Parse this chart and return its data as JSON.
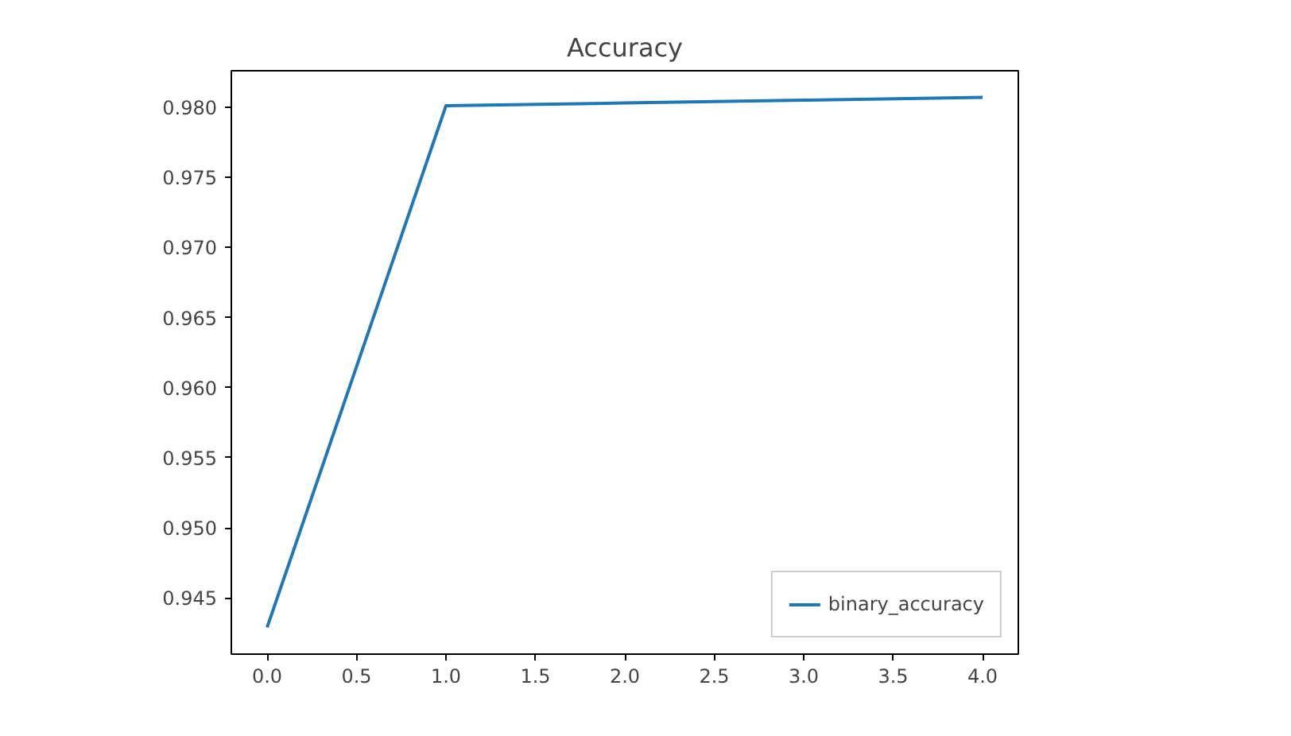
{
  "chart_data": {
    "type": "line",
    "title": "Accuracy",
    "x": [
      0,
      1,
      2,
      3,
      4
    ],
    "series": [
      {
        "name": "binary_accuracy",
        "color": "#1f77b4",
        "values": [
          0.9429,
          0.9801,
          0.9803,
          0.9805,
          0.9807
        ]
      }
    ],
    "xlim": [
      -0.2,
      4.2
    ],
    "ylim": [
      0.941,
      0.9826
    ],
    "xticks": [
      {
        "value": 0,
        "label": "0.0"
      },
      {
        "value": 0.5,
        "label": "0.5"
      },
      {
        "value": 1,
        "label": "1.0"
      },
      {
        "value": 1.5,
        "label": "1.5"
      },
      {
        "value": 2,
        "label": "2.0"
      },
      {
        "value": 2.5,
        "label": "2.5"
      },
      {
        "value": 3,
        "label": "3.0"
      },
      {
        "value": 3.5,
        "label": "3.5"
      },
      {
        "value": 4,
        "label": "4.0"
      }
    ],
    "yticks": [
      {
        "value": 0.945,
        "label": "0.945"
      },
      {
        "value": 0.95,
        "label": "0.950"
      },
      {
        "value": 0.955,
        "label": "0.955"
      },
      {
        "value": 0.96,
        "label": "0.960"
      },
      {
        "value": 0.965,
        "label": "0.965"
      },
      {
        "value": 0.97,
        "label": "0.970"
      },
      {
        "value": 0.975,
        "label": "0.975"
      },
      {
        "value": 0.98,
        "label": "0.980"
      }
    ],
    "grid": false,
    "legend": "bottom right"
  }
}
